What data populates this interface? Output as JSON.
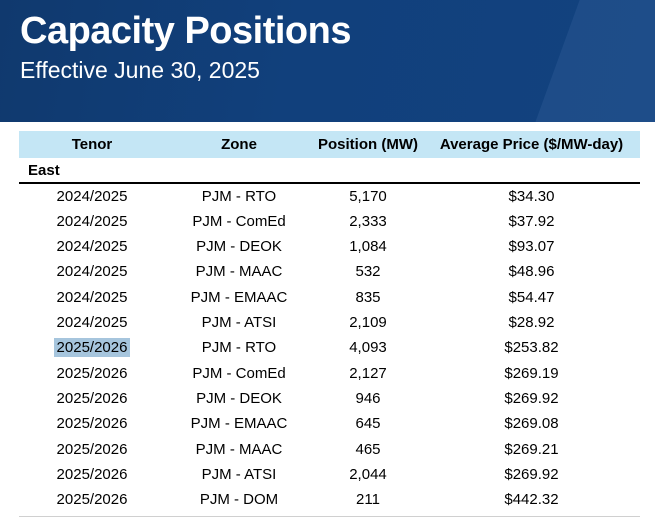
{
  "banner": {
    "title": "Capacity Positions",
    "subtitle": "Effective June 30, 2025"
  },
  "table": {
    "columns": [
      "Tenor",
      "Zone",
      "Position (MW)",
      "Average Price ($/MW-day)"
    ],
    "section_label": "East",
    "rows": [
      {
        "tenor": "2024/2025",
        "zone": "PJM - RTO",
        "position": "5,170",
        "avg_price": "$34.30",
        "tenor_highlighted": false
      },
      {
        "tenor": "2024/2025",
        "zone": "PJM - ComEd",
        "position": "2,333",
        "avg_price": "$37.92",
        "tenor_highlighted": false
      },
      {
        "tenor": "2024/2025",
        "zone": "PJM - DEOK",
        "position": "1,084",
        "avg_price": "$93.07",
        "tenor_highlighted": false
      },
      {
        "tenor": "2024/2025",
        "zone": "PJM - MAAC",
        "position": "532",
        "avg_price": "$48.96",
        "tenor_highlighted": false
      },
      {
        "tenor": "2024/2025",
        "zone": "PJM - EMAAC",
        "position": "835",
        "avg_price": "$54.47",
        "tenor_highlighted": false
      },
      {
        "tenor": "2024/2025",
        "zone": "PJM - ATSI",
        "position": "2,109",
        "avg_price": "$28.92",
        "tenor_highlighted": false
      },
      {
        "tenor": "2025/2026",
        "zone": "PJM - RTO",
        "position": "4,093",
        "avg_price": "$253.82",
        "tenor_highlighted": true
      },
      {
        "tenor": "2025/2026",
        "zone": "PJM - ComEd",
        "position": "2,127",
        "avg_price": "$269.19",
        "tenor_highlighted": false
      },
      {
        "tenor": "2025/2026",
        "zone": "PJM - DEOK",
        "position": "946",
        "avg_price": "$269.92",
        "tenor_highlighted": false
      },
      {
        "tenor": "2025/2026",
        "zone": "PJM - EMAAC",
        "position": "645",
        "avg_price": "$269.08",
        "tenor_highlighted": false
      },
      {
        "tenor": "2025/2026",
        "zone": "PJM - MAAC",
        "position": "465",
        "avg_price": "$269.21",
        "tenor_highlighted": false
      },
      {
        "tenor": "2025/2026",
        "zone": "PJM - ATSI",
        "position": "2,044",
        "avg_price": "$269.92",
        "tenor_highlighted": false
      },
      {
        "tenor": "2025/2026",
        "zone": "PJM - DOM",
        "position": "211",
        "avg_price": "$442.32",
        "tenor_highlighted": false
      }
    ]
  },
  "colors": {
    "banner_bg": "#11407c",
    "header_row_bg": "#c4e6f5",
    "highlight": "#a6c5dd",
    "title_text": "#ffffff",
    "body_text": "#000000"
  }
}
